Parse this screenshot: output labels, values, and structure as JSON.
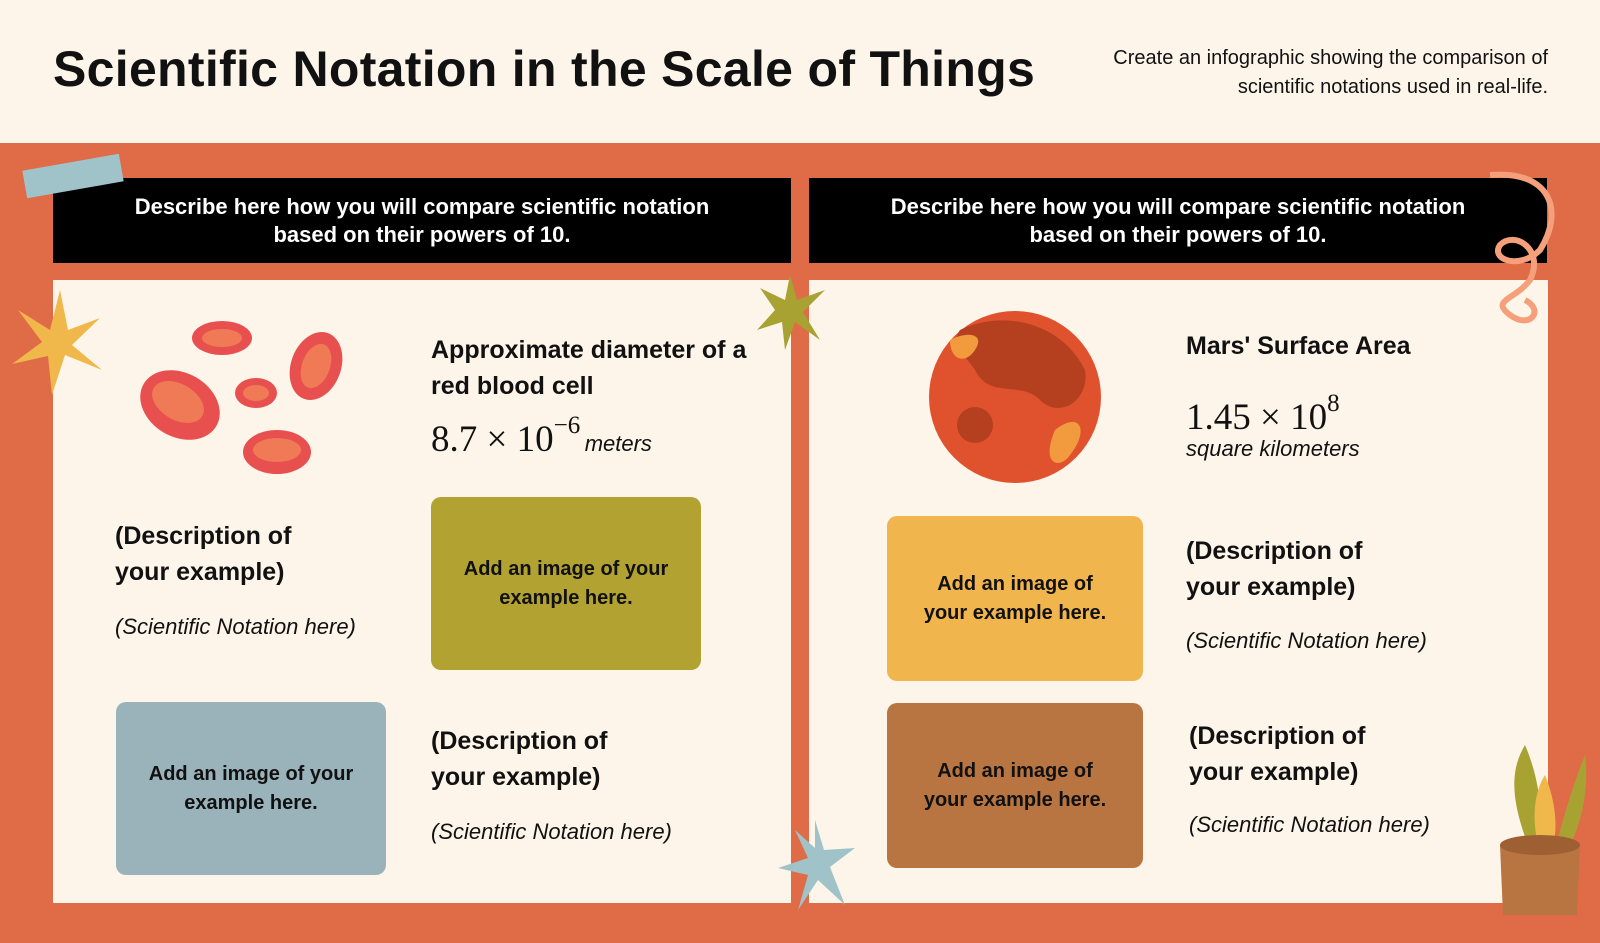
{
  "header": {
    "title": "Scientific Notation in the Scale of Things",
    "subtitle": "Create an infographic showing the comparison of scientific notations used in real-life."
  },
  "panels": [
    {
      "instruction": "Describe here how you will compare scientific notation based on their powers of 10.",
      "feature": {
        "title": "Approximate diameter of a red blood cell",
        "notation": {
          "base": "8.7 × 10",
          "exponent": "−6"
        },
        "unit": "meters"
      },
      "examples": [
        {
          "description": "(Description of your example)",
          "notation": "(Scientific Notation here)",
          "image": "Add an image of your example here."
        },
        {
          "description": "(Description of your example)",
          "notation": "(Scientific Notation here)",
          "image": "Add an image of your example here."
        }
      ]
    },
    {
      "instruction": "Describe here how you will compare scientific notation based on their powers of 10.",
      "feature": {
        "title": "Mars' Surface Area",
        "notation": {
          "base": "1.45 × 10",
          "exponent": "8"
        },
        "unit": "square kilometers"
      },
      "examples": [
        {
          "description": "(Description of your example)",
          "notation": "(Scientific Notation here)",
          "image": "Add an image of your example here."
        },
        {
          "description": "(Description of your example)",
          "notation": "(Scientific Notation here)",
          "image": "Add an image of your example here."
        }
      ]
    }
  ]
}
